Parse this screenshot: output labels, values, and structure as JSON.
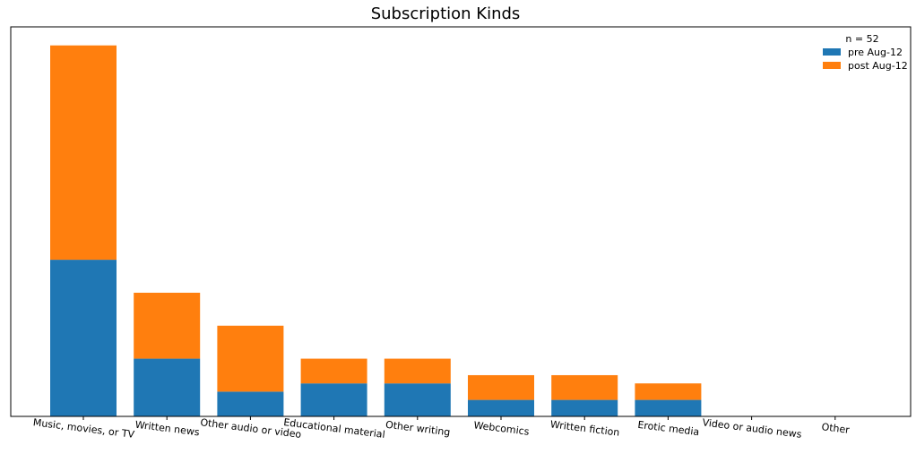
{
  "chart_data": {
    "type": "bar",
    "stacked": true,
    "title": "Subscription Kinds",
    "xlabel": "",
    "ylabel": "",
    "categories": [
      "Music, movies, or TV",
      "Written news",
      "Other audio or video",
      "Educational material",
      "Other writing",
      "Webcomics",
      "Written fiction",
      "Erotic media",
      "Video or audio news",
      "Other"
    ],
    "series": [
      {
        "name": "pre Aug-12",
        "color": "#1f77b4",
        "values": [
          19,
          7,
          3,
          4,
          4,
          2,
          2,
          2,
          0,
          0
        ]
      },
      {
        "name": "post Aug-12",
        "color": "#ff7f0e",
        "values": [
          26,
          8,
          8,
          3,
          3,
          3,
          3,
          2,
          0,
          0
        ]
      }
    ],
    "ylim": [
      0,
      47.25
    ],
    "grid": false,
    "y_ticks_visible": false,
    "legend": {
      "title": "n = 52",
      "placement": "top-right",
      "frame": false
    }
  }
}
